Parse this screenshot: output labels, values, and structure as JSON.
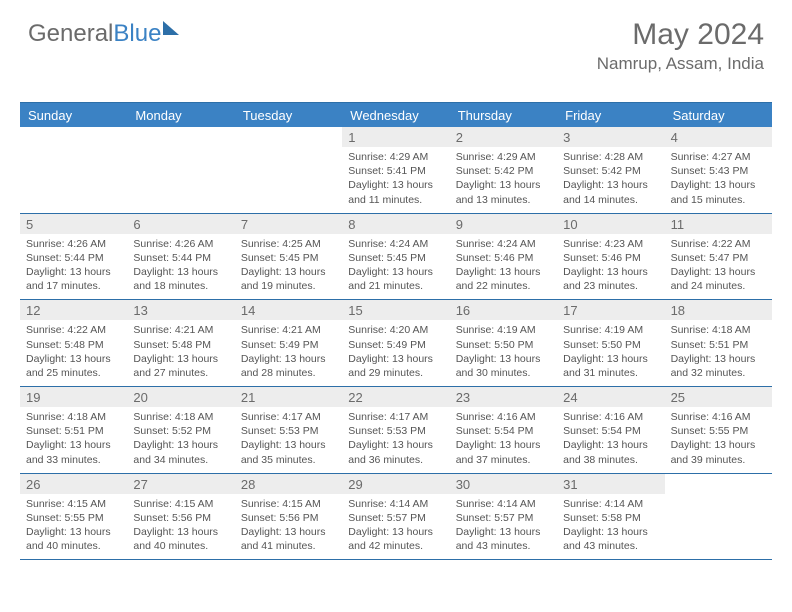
{
  "logo": {
    "part1": "General",
    "part2": "Blue"
  },
  "header": {
    "month_year": "May 2024",
    "location": "Namrup, Assam, India"
  },
  "colors": {
    "header_bg": "#3b82c4",
    "border": "#2d6fa8",
    "daynum_bg": "#ededed",
    "text": "#6b6b6b",
    "body_text": "#555555",
    "white": "#ffffff"
  },
  "day_labels": [
    "Sunday",
    "Monday",
    "Tuesday",
    "Wednesday",
    "Thursday",
    "Friday",
    "Saturday"
  ],
  "weeks": [
    [
      {
        "num": "",
        "sunrise": "",
        "sunset": "",
        "daylight": ""
      },
      {
        "num": "",
        "sunrise": "",
        "sunset": "",
        "daylight": ""
      },
      {
        "num": "",
        "sunrise": "",
        "sunset": "",
        "daylight": ""
      },
      {
        "num": "1",
        "sunrise": "Sunrise: 4:29 AM",
        "sunset": "Sunset: 5:41 PM",
        "daylight": "Daylight: 13 hours and 11 minutes."
      },
      {
        "num": "2",
        "sunrise": "Sunrise: 4:29 AM",
        "sunset": "Sunset: 5:42 PM",
        "daylight": "Daylight: 13 hours and 13 minutes."
      },
      {
        "num": "3",
        "sunrise": "Sunrise: 4:28 AM",
        "sunset": "Sunset: 5:42 PM",
        "daylight": "Daylight: 13 hours and 14 minutes."
      },
      {
        "num": "4",
        "sunrise": "Sunrise: 4:27 AM",
        "sunset": "Sunset: 5:43 PM",
        "daylight": "Daylight: 13 hours and 15 minutes."
      }
    ],
    [
      {
        "num": "5",
        "sunrise": "Sunrise: 4:26 AM",
        "sunset": "Sunset: 5:44 PM",
        "daylight": "Daylight: 13 hours and 17 minutes."
      },
      {
        "num": "6",
        "sunrise": "Sunrise: 4:26 AM",
        "sunset": "Sunset: 5:44 PM",
        "daylight": "Daylight: 13 hours and 18 minutes."
      },
      {
        "num": "7",
        "sunrise": "Sunrise: 4:25 AM",
        "sunset": "Sunset: 5:45 PM",
        "daylight": "Daylight: 13 hours and 19 minutes."
      },
      {
        "num": "8",
        "sunrise": "Sunrise: 4:24 AM",
        "sunset": "Sunset: 5:45 PM",
        "daylight": "Daylight: 13 hours and 21 minutes."
      },
      {
        "num": "9",
        "sunrise": "Sunrise: 4:24 AM",
        "sunset": "Sunset: 5:46 PM",
        "daylight": "Daylight: 13 hours and 22 minutes."
      },
      {
        "num": "10",
        "sunrise": "Sunrise: 4:23 AM",
        "sunset": "Sunset: 5:46 PM",
        "daylight": "Daylight: 13 hours and 23 minutes."
      },
      {
        "num": "11",
        "sunrise": "Sunrise: 4:22 AM",
        "sunset": "Sunset: 5:47 PM",
        "daylight": "Daylight: 13 hours and 24 minutes."
      }
    ],
    [
      {
        "num": "12",
        "sunrise": "Sunrise: 4:22 AM",
        "sunset": "Sunset: 5:48 PM",
        "daylight": "Daylight: 13 hours and 25 minutes."
      },
      {
        "num": "13",
        "sunrise": "Sunrise: 4:21 AM",
        "sunset": "Sunset: 5:48 PM",
        "daylight": "Daylight: 13 hours and 27 minutes."
      },
      {
        "num": "14",
        "sunrise": "Sunrise: 4:21 AM",
        "sunset": "Sunset: 5:49 PM",
        "daylight": "Daylight: 13 hours and 28 minutes."
      },
      {
        "num": "15",
        "sunrise": "Sunrise: 4:20 AM",
        "sunset": "Sunset: 5:49 PM",
        "daylight": "Daylight: 13 hours and 29 minutes."
      },
      {
        "num": "16",
        "sunrise": "Sunrise: 4:19 AM",
        "sunset": "Sunset: 5:50 PM",
        "daylight": "Daylight: 13 hours and 30 minutes."
      },
      {
        "num": "17",
        "sunrise": "Sunrise: 4:19 AM",
        "sunset": "Sunset: 5:50 PM",
        "daylight": "Daylight: 13 hours and 31 minutes."
      },
      {
        "num": "18",
        "sunrise": "Sunrise: 4:18 AM",
        "sunset": "Sunset: 5:51 PM",
        "daylight": "Daylight: 13 hours and 32 minutes."
      }
    ],
    [
      {
        "num": "19",
        "sunrise": "Sunrise: 4:18 AM",
        "sunset": "Sunset: 5:51 PM",
        "daylight": "Daylight: 13 hours and 33 minutes."
      },
      {
        "num": "20",
        "sunrise": "Sunrise: 4:18 AM",
        "sunset": "Sunset: 5:52 PM",
        "daylight": "Daylight: 13 hours and 34 minutes."
      },
      {
        "num": "21",
        "sunrise": "Sunrise: 4:17 AM",
        "sunset": "Sunset: 5:53 PM",
        "daylight": "Daylight: 13 hours and 35 minutes."
      },
      {
        "num": "22",
        "sunrise": "Sunrise: 4:17 AM",
        "sunset": "Sunset: 5:53 PM",
        "daylight": "Daylight: 13 hours and 36 minutes."
      },
      {
        "num": "23",
        "sunrise": "Sunrise: 4:16 AM",
        "sunset": "Sunset: 5:54 PM",
        "daylight": "Daylight: 13 hours and 37 minutes."
      },
      {
        "num": "24",
        "sunrise": "Sunrise: 4:16 AM",
        "sunset": "Sunset: 5:54 PM",
        "daylight": "Daylight: 13 hours and 38 minutes."
      },
      {
        "num": "25",
        "sunrise": "Sunrise: 4:16 AM",
        "sunset": "Sunset: 5:55 PM",
        "daylight": "Daylight: 13 hours and 39 minutes."
      }
    ],
    [
      {
        "num": "26",
        "sunrise": "Sunrise: 4:15 AM",
        "sunset": "Sunset: 5:55 PM",
        "daylight": "Daylight: 13 hours and 40 minutes."
      },
      {
        "num": "27",
        "sunrise": "Sunrise: 4:15 AM",
        "sunset": "Sunset: 5:56 PM",
        "daylight": "Daylight: 13 hours and 40 minutes."
      },
      {
        "num": "28",
        "sunrise": "Sunrise: 4:15 AM",
        "sunset": "Sunset: 5:56 PM",
        "daylight": "Daylight: 13 hours and 41 minutes."
      },
      {
        "num": "29",
        "sunrise": "Sunrise: 4:14 AM",
        "sunset": "Sunset: 5:57 PM",
        "daylight": "Daylight: 13 hours and 42 minutes."
      },
      {
        "num": "30",
        "sunrise": "Sunrise: 4:14 AM",
        "sunset": "Sunset: 5:57 PM",
        "daylight": "Daylight: 13 hours and 43 minutes."
      },
      {
        "num": "31",
        "sunrise": "Sunrise: 4:14 AM",
        "sunset": "Sunset: 5:58 PM",
        "daylight": "Daylight: 13 hours and 43 minutes."
      },
      {
        "num": "",
        "sunrise": "",
        "sunset": "",
        "daylight": ""
      }
    ]
  ]
}
